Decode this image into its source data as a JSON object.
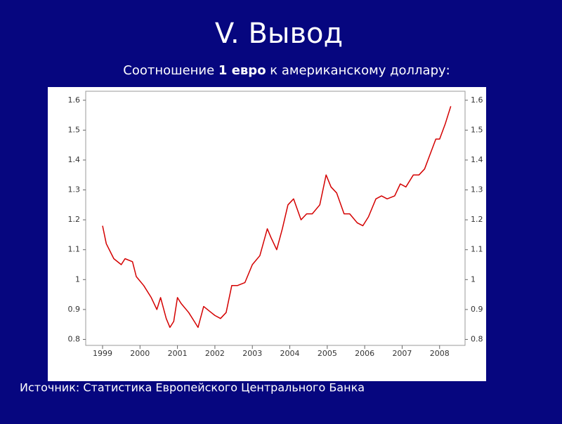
{
  "slide": {
    "title": "V. Вывод",
    "subtitle_parts": [
      "Соотношение ",
      "1 евро",
      " к американскому доллару:"
    ],
    "source": "Источник: Статистика Европейского Центрального Банка"
  },
  "chart_data": {
    "type": "line",
    "color": "#d40000",
    "x": [
      1999.0,
      1999.1,
      1999.3,
      1999.5,
      1999.6,
      1999.8,
      1999.9,
      2000.1,
      2000.3,
      2000.45,
      2000.55,
      2000.7,
      2000.8,
      2000.9,
      2001.0,
      2001.1,
      2001.3,
      2001.45,
      2001.55,
      2001.7,
      2001.9,
      2002.0,
      2002.15,
      2002.3,
      2002.45,
      2002.6,
      2002.8,
      2003.0,
      2003.2,
      2003.4,
      2003.5,
      2003.65,
      2003.8,
      2003.95,
      2004.1,
      2004.3,
      2004.45,
      2004.6,
      2004.8,
      2004.97,
      2005.1,
      2005.25,
      2005.45,
      2005.6,
      2005.8,
      2005.95,
      2006.1,
      2006.3,
      2006.45,
      2006.6,
      2006.8,
      2006.95,
      2007.1,
      2007.3,
      2007.45,
      2007.6,
      2007.75,
      2007.9,
      2008.0,
      2008.15,
      2008.3
    ],
    "values": [
      1.18,
      1.12,
      1.07,
      1.05,
      1.07,
      1.06,
      1.01,
      0.98,
      0.94,
      0.9,
      0.94,
      0.87,
      0.84,
      0.86,
      0.94,
      0.92,
      0.89,
      0.86,
      0.84,
      0.91,
      0.89,
      0.88,
      0.87,
      0.89,
      0.98,
      0.98,
      0.99,
      1.05,
      1.08,
      1.17,
      1.14,
      1.1,
      1.17,
      1.25,
      1.27,
      1.2,
      1.22,
      1.22,
      1.25,
      1.35,
      1.31,
      1.29,
      1.22,
      1.22,
      1.19,
      1.18,
      1.21,
      1.27,
      1.28,
      1.27,
      1.28,
      1.32,
      1.31,
      1.35,
      1.35,
      1.37,
      1.42,
      1.47,
      1.47,
      1.52,
      1.58
    ],
    "xlim": [
      1998.55,
      2008.68
    ],
    "xticks": [
      1999,
      2000,
      2001,
      2002,
      2003,
      2004,
      2005,
      2006,
      2007,
      2008
    ],
    "ylim": [
      0.78,
      1.63
    ],
    "yticks": [
      0.8,
      0.9,
      1,
      1.1,
      1.2,
      1.3,
      1.4,
      1.5,
      1.6
    ]
  }
}
